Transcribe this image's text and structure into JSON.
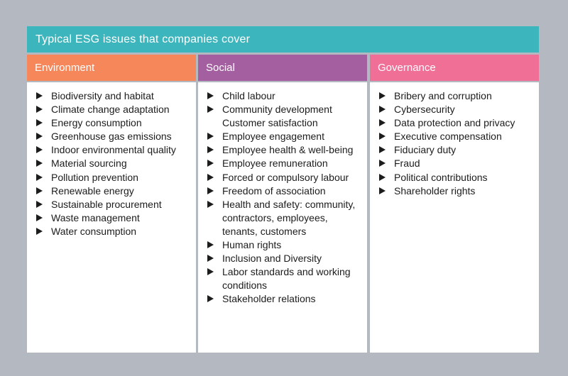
{
  "title": "Typical ESG issues that companies cover",
  "colors": {
    "background": "#b3b8c1",
    "title_bar": "#3db5bd",
    "environment": "#f5875a",
    "social": "#a45fa0",
    "governance": "#ef6f96",
    "panel": "#ffffff",
    "text": "#1c1c1c"
  },
  "bullet_icon": "right-triangle",
  "columns": [
    {
      "header": "Environment",
      "items": [
        {
          "text": "Biodiversity and habitat",
          "bullet": true
        },
        {
          "text": "Climate change adaptation",
          "bullet": true
        },
        {
          "text": "Energy consumption",
          "bullet": true
        },
        {
          "text": "Greenhouse gas emissions",
          "bullet": true
        },
        {
          "text": "Indoor environmental quality",
          "bullet": true
        },
        {
          "text": "Material sourcing",
          "bullet": true
        },
        {
          "text": "Pollution prevention",
          "bullet": true
        },
        {
          "text": "Renewable energy",
          "bullet": true
        },
        {
          "text": "Sustainable procurement",
          "bullet": true
        },
        {
          "text": "Waste management",
          "bullet": true
        },
        {
          "text": "Water consumption",
          "bullet": true
        }
      ]
    },
    {
      "header": "Social",
      "items": [
        {
          "text": "Child labour",
          "bullet": true
        },
        {
          "text": "Community development",
          "bullet": true
        },
        {
          "text": "Customer satisfaction",
          "bullet": false
        },
        {
          "text": "Employee engagement",
          "bullet": true
        },
        {
          "text": "Employee health & well-being",
          "bullet": true
        },
        {
          "text": "Employee remuneration",
          "bullet": true
        },
        {
          "text": "Forced or compulsory labour",
          "bullet": true
        },
        {
          "text": "Freedom of association",
          "bullet": true
        },
        {
          "text": "Health and safety: community, contractors, employees, tenants, customers",
          "bullet": true
        },
        {
          "text": "Human rights",
          "bullet": true
        },
        {
          "text": "Inclusion and Diversity",
          "bullet": true
        },
        {
          "text": "Labor standards and working conditions",
          "bullet": true
        },
        {
          "text": "Stakeholder relations",
          "bullet": true
        }
      ]
    },
    {
      "header": "Governance",
      "items": [
        {
          "text": "Bribery and corruption",
          "bullet": true
        },
        {
          "text": "Cybersecurity",
          "bullet": true
        },
        {
          "text": "Data protection and privacy",
          "bullet": true
        },
        {
          "text": "Executive compensation",
          "bullet": true
        },
        {
          "text": "Fiduciary duty",
          "bullet": true
        },
        {
          "text": "Fraud",
          "bullet": true
        },
        {
          "text": "Political contributions",
          "bullet": true
        },
        {
          "text": "Shareholder rights",
          "bullet": true
        }
      ]
    }
  ]
}
